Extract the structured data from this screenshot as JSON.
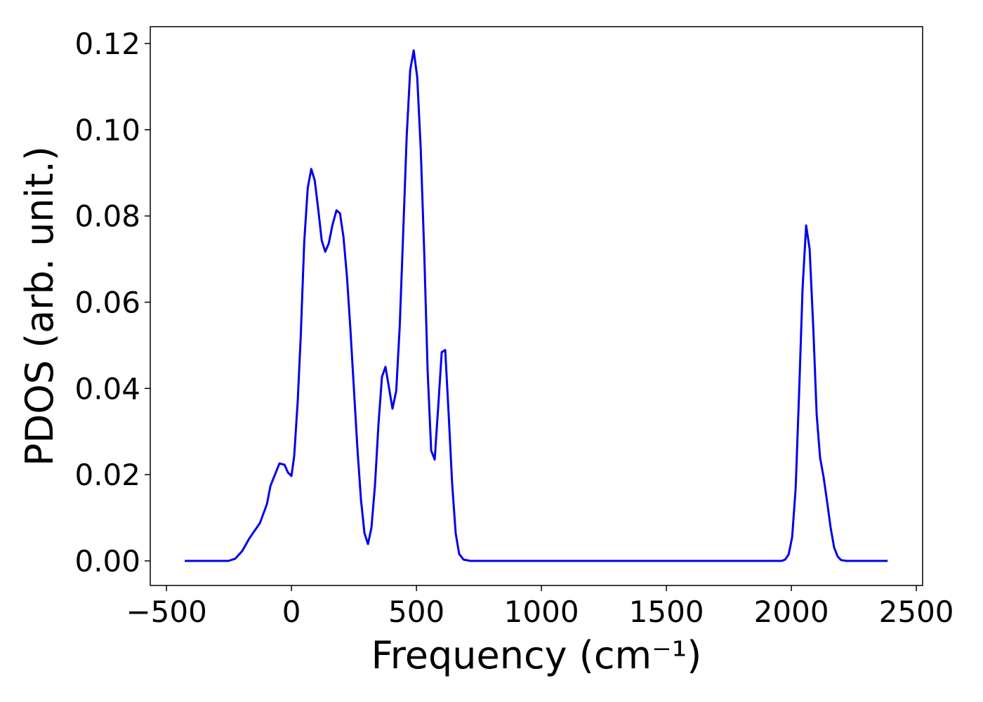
{
  "chart_data": {
    "type": "line",
    "xlabel": "Frequency (cm⁻¹)",
    "ylabel": "PDOS (arb. unit.)",
    "xlim": [
      -565,
      2525
    ],
    "ylim": [
      -0.0057,
      0.1239
    ],
    "xticks": [
      {
        "value": -500,
        "label": "−500"
      },
      0,
      500,
      1000,
      1500,
      2000,
      2500
    ],
    "yticks": [
      {
        "value": 0,
        "label": "0.00"
      },
      {
        "value": 0.02,
        "label": "0.02"
      },
      {
        "value": 0.04,
        "label": "0.04"
      },
      {
        "value": 0.06,
        "label": "0.06"
      },
      {
        "value": 0.08,
        "label": "0.08"
      },
      {
        "value": 0.1,
        "label": "0.10"
      },
      {
        "value": 0.12,
        "label": "0.12"
      }
    ],
    "grid": false,
    "series": [
      {
        "color": "#0000ee",
        "x": [
          -427,
          -253,
          -225,
          -197,
          -169,
          -126,
          -98,
          -84,
          -48,
          -28,
          -14,
          0,
          11,
          25,
          37,
          51,
          65,
          79,
          93,
          107,
          121,
          135,
          149,
          163,
          180,
          194,
          208,
          222,
          236,
          250,
          264,
          278,
          292,
          306,
          320,
          334,
          348,
          362,
          376,
          390,
          404,
          419,
          433,
          447,
          461,
          475,
          489,
          503,
          517,
          531,
          545,
          559,
          573,
          587,
          601,
          615,
          629,
          643,
          657,
          671,
          688,
          716,
          1961,
          1975,
          1989,
          2003,
          2017,
          2031,
          2045,
          2059,
          2073,
          2088,
          2101,
          2115,
          2129,
          2143,
          2157,
          2171,
          2185,
          2199,
          2219,
          2385
        ],
        "values": [
          0,
          0,
          0.0005,
          0.0023,
          0.0052,
          0.0088,
          0.0132,
          0.0174,
          0.0226,
          0.0223,
          0.0205,
          0.0197,
          0.0243,
          0.037,
          0.052,
          0.074,
          0.0865,
          0.0909,
          0.0883,
          0.0816,
          0.0743,
          0.0717,
          0.0736,
          0.0777,
          0.0813,
          0.0806,
          0.0751,
          0.0658,
          0.0536,
          0.0397,
          0.0259,
          0.0142,
          0.0064,
          0.0039,
          0.0077,
          0.0174,
          0.0316,
          0.0427,
          0.045,
          0.0402,
          0.0353,
          0.0394,
          0.0544,
          0.0764,
          0.0984,
          0.1138,
          0.1184,
          0.1122,
          0.0956,
          0.0715,
          0.0438,
          0.0256,
          0.0235,
          0.0357,
          0.0484,
          0.0489,
          0.034,
          0.0178,
          0.0064,
          0.0016,
          0.0003,
          0,
          0,
          0.0003,
          0.0015,
          0.0055,
          0.0169,
          0.039,
          0.0634,
          0.0778,
          0.0723,
          0.0536,
          0.034,
          0.0239,
          0.0194,
          0.0137,
          0.0077,
          0.0031,
          0.001,
          0.0002,
          0,
          0
        ]
      }
    ]
  }
}
